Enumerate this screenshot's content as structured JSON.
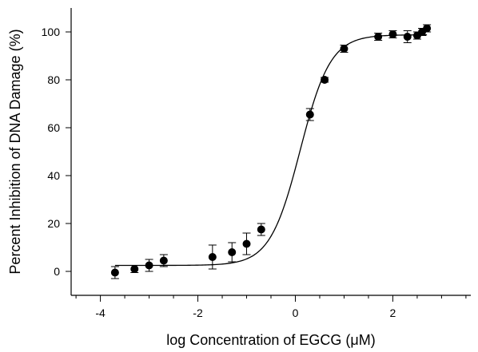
{
  "chart_data": {
    "type": "scatter",
    "xlabel": "log Concentration of EGCG (μM)",
    "ylabel": "Percent Inhibition of DNA Damage (%)",
    "xlim": [
      -4.6,
      3.6
    ],
    "ylim": [
      -10,
      110
    ],
    "x_ticks": [
      -4,
      -2,
      0,
      2
    ],
    "x_minor_step": 0.5,
    "y_ticks": [
      0,
      20,
      40,
      60,
      80,
      100
    ],
    "grid": false,
    "series": [
      {
        "x": [
          -3.7,
          -3.3,
          -3.0,
          -2.7,
          -1.7,
          -1.3,
          -1.0,
          -0.7,
          0.3,
          0.6,
          1.0,
          1.7,
          2.0,
          2.3,
          2.5,
          2.6,
          2.7
        ],
        "y": [
          -0.5,
          1.0,
          2.5,
          4.5,
          6.0,
          8.0,
          11.5,
          17.5,
          65.5,
          80.0,
          93.0,
          98.0,
          99.0,
          98.0,
          98.5,
          100.0,
          101.5
        ],
        "error": [
          2.5,
          1.5,
          2.5,
          2.5,
          5.0,
          4.0,
          4.5,
          2.5,
          2.5,
          1.0,
          1.5,
          1.5,
          1.5,
          2.5,
          1.5,
          1.5,
          1.5
        ]
      }
    ],
    "fit_curve": {
      "type": "sigmoid",
      "bottom": 2.5,
      "top": 98.8,
      "log_ec50": 0.1,
      "hill_slope": 1.4
    }
  }
}
